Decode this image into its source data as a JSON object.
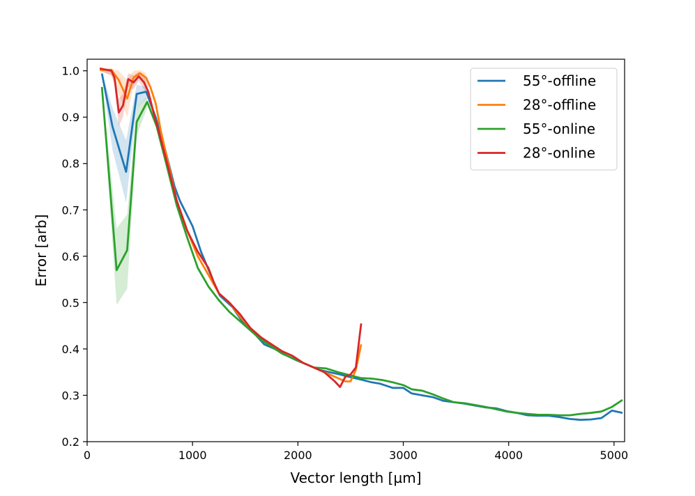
{
  "chart_data": {
    "type": "line",
    "title": "",
    "xlabel": "Vector length [µm]",
    "ylabel": "Error [arb]",
    "xlim": [
      0,
      5100
    ],
    "ylim": [
      0.2,
      1.025
    ],
    "xticks": [
      0,
      1000,
      2000,
      3000,
      4000,
      5000
    ],
    "xtick_labels": [
      "0",
      "1000",
      "2000",
      "3000",
      "4000",
      "5000"
    ],
    "yticks": [
      0.2,
      0.3,
      0.4,
      0.5,
      0.6,
      0.7,
      0.8,
      0.9,
      1.0
    ],
    "ytick_labels": [
      "0.2",
      "0.3",
      "0.4",
      "0.5",
      "0.6",
      "0.7",
      "0.8",
      "0.9",
      "1.0"
    ],
    "grid": false,
    "legend_position": "top-right",
    "series": [
      {
        "name": "55°-offline",
        "color": "#1f77b4",
        "x": [
          140,
          240,
          370,
          470,
          560,
          650,
          740,
          830,
          880,
          1000,
          1080,
          1200,
          1260,
          1380,
          1470,
          1560,
          1680,
          1780,
          1900,
          1990,
          2100,
          2200,
          2300,
          2400,
          2480,
          2580,
          2700,
          2780,
          2900,
          3000,
          3080,
          3180,
          3280,
          3380,
          3480,
          3580,
          3680,
          3780,
          3880,
          3980,
          4080,
          4180,
          4270,
          4380,
          4480,
          4580,
          4680,
          4780,
          4880,
          4980,
          5080
        ],
        "y": [
          0.994,
          0.88,
          0.782,
          0.95,
          0.955,
          0.9,
          0.83,
          0.75,
          0.72,
          0.665,
          0.61,
          0.545,
          0.515,
          0.49,
          0.46,
          0.44,
          0.41,
          0.4,
          0.385,
          0.375,
          0.365,
          0.355,
          0.35,
          0.345,
          0.34,
          0.335,
          0.328,
          0.325,
          0.316,
          0.316,
          0.304,
          0.3,
          0.296,
          0.288,
          0.285,
          0.282,
          0.278,
          0.274,
          0.272,
          0.266,
          0.262,
          0.257,
          0.256,
          0.256,
          0.253,
          0.249,
          0.247,
          0.248,
          0.251,
          0.267,
          0.262
        ],
        "band_upper": [
          0.997,
          0.92,
          0.85,
          0.97,
          0.965
        ],
        "band_lower": [
          0.99,
          0.83,
          0.715,
          0.92,
          0.94
        ]
      },
      {
        "name": "28°-offline",
        "color": "#ff7f0e",
        "x": [
          120,
          230,
          300,
          380,
          440,
          500,
          560,
          600,
          650,
          700,
          760,
          850,
          950,
          1050,
          1150,
          1250,
          1350,
          1450,
          1550,
          1650,
          1750,
          1850,
          1950,
          2050,
          2150,
          2250,
          2350,
          2450,
          2500,
          2550,
          2600
        ],
        "y": [
          1.002,
          1.002,
          0.98,
          0.94,
          0.985,
          0.995,
          0.985,
          0.965,
          0.93,
          0.87,
          0.81,
          0.72,
          0.655,
          0.6,
          0.56,
          0.52,
          0.5,
          0.47,
          0.445,
          0.425,
          0.405,
          0.39,
          0.38,
          0.37,
          0.36,
          0.35,
          0.34,
          0.33,
          0.33,
          0.355,
          0.41
        ],
        "band_upper": [
          1.005,
          1.005,
          1.0,
          0.98,
          1.0,
          1.002,
          0.995
        ],
        "band_lower": [
          1.0,
          0.99,
          0.95,
          0.9,
          0.97,
          0.985,
          0.97
        ]
      },
      {
        "name": "55°-online",
        "color": "#2ca02c",
        "x": [
          140,
          280,
          380,
          470,
          570,
          660,
          750,
          850,
          950,
          1050,
          1150,
          1250,
          1350,
          1450,
          1550,
          1650,
          1750,
          1850,
          1950,
          2050,
          2150,
          2270,
          2380,
          2500,
          2600,
          2700,
          2800,
          2900,
          3000,
          3080,
          3180,
          3280,
          3380,
          3480,
          3580,
          3680,
          3780,
          3880,
          3980,
          4080,
          4180,
          4280,
          4380,
          4480,
          4580,
          4680,
          4780,
          4880,
          4980,
          5080
        ],
        "y": [
          0.965,
          0.57,
          0.613,
          0.89,
          0.933,
          0.88,
          0.8,
          0.71,
          0.64,
          0.575,
          0.535,
          0.505,
          0.48,
          0.46,
          0.44,
          0.42,
          0.405,
          0.39,
          0.38,
          0.37,
          0.36,
          0.358,
          0.35,
          0.343,
          0.337,
          0.336,
          0.333,
          0.328,
          0.322,
          0.313,
          0.31,
          0.302,
          0.293,
          0.285,
          0.283,
          0.279,
          0.275,
          0.27,
          0.265,
          0.262,
          0.26,
          0.258,
          0.258,
          0.257,
          0.257,
          0.26,
          0.262,
          0.265,
          0.275,
          0.29
        ],
        "band_upper": [
          0.97,
          0.66,
          0.69,
          0.92,
          0.945
        ],
        "band_lower": [
          0.96,
          0.495,
          0.53,
          0.86,
          0.92
        ]
      },
      {
        "name": "28°-online",
        "color": "#d62728",
        "x": [
          120,
          230,
          260,
          300,
          340,
          390,
          440,
          490,
          540,
          580,
          630,
          690,
          760,
          850,
          950,
          1050,
          1150,
          1200,
          1250,
          1300,
          1350,
          1450,
          1550,
          1650,
          1750,
          1850,
          1950,
          2050,
          2150,
          2250,
          2350,
          2400,
          2450,
          2500,
          2550,
          2600
        ],
        "y": [
          1.005,
          1.0,
          0.985,
          0.91,
          0.925,
          0.982,
          0.975,
          0.988,
          0.975,
          0.955,
          0.91,
          0.86,
          0.8,
          0.72,
          0.655,
          0.61,
          0.575,
          0.545,
          0.52,
          0.51,
          0.5,
          0.475,
          0.445,
          0.425,
          0.41,
          0.395,
          0.385,
          0.37,
          0.36,
          0.35,
          0.33,
          0.318,
          0.34,
          0.345,
          0.36,
          0.455
        ],
        "band_upper": [
          1.005,
          1.002,
          0.995,
          0.94,
          0.95,
          0.995,
          0.99,
          0.998,
          0.988,
          0.97
        ],
        "band_lower": [
          1.0,
          0.99,
          0.97,
          0.88,
          0.9,
          0.965,
          0.96,
          0.978,
          0.96,
          0.94
        ]
      }
    ]
  }
}
